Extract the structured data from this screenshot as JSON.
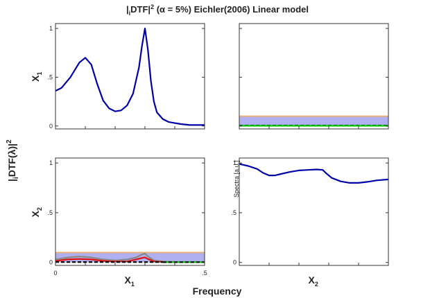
{
  "figure": {
    "title_main": "|",
    "title_sub": "i",
    "title_rest": "DTF|",
    "title_sup": "2",
    "title_tail": " (α = 5%) Eichler(2006) Linear model",
    "ylabel_main": "|",
    "ylabel_sub": "i",
    "ylabel_rest": "DTF(λ)|",
    "ylabel_sup": "2",
    "xlabel": "Frequency",
    "spectra_label": "Spectra [a.u.]"
  },
  "chart_data": [
    {
      "id": "p11",
      "type": "line",
      "row_label": "X",
      "row_sub": "1",
      "ylim": [
        0,
        1
      ],
      "xlim": [
        0,
        0.5
      ],
      "yticks": [
        "0",
        ".5",
        "1"
      ],
      "series": [
        {
          "color": "#0000a8",
          "x": [
            0,
            0.02,
            0.05,
            0.08,
            0.1,
            0.12,
            0.14,
            0.16,
            0.18,
            0.2,
            0.22,
            0.24,
            0.26,
            0.28,
            0.29,
            0.3,
            0.31,
            0.32,
            0.33,
            0.34,
            0.36,
            0.38,
            0.4,
            0.42,
            0.45,
            0.48,
            0.5
          ],
          "y": [
            0.36,
            0.39,
            0.5,
            0.65,
            0.7,
            0.63,
            0.43,
            0.26,
            0.18,
            0.15,
            0.16,
            0.21,
            0.33,
            0.6,
            0.82,
            1.0,
            0.78,
            0.46,
            0.25,
            0.14,
            0.07,
            0.04,
            0.03,
            0.02,
            0.01,
            0.01,
            0.01
          ]
        }
      ]
    },
    {
      "id": "p12",
      "type": "line",
      "ylim": [
        0,
        1
      ],
      "xlim": [
        0,
        0.5
      ],
      "band": {
        "upper": 0.1,
        "color": "#b0b0f0",
        "edge": "#e8b07a"
      },
      "series": [
        {
          "color": "#000000",
          "dashed": true,
          "x": [
            0,
            0.5
          ],
          "y": [
            0.005,
            0.005
          ]
        },
        {
          "color": "#00cc00",
          "dashed": false,
          "x": [
            0,
            0.5
          ],
          "y": [
            0.002,
            0.002
          ]
        }
      ]
    },
    {
      "id": "p21",
      "type": "line",
      "row_label": "X",
      "row_sub": "2",
      "col_label": "X",
      "col_sub": "1",
      "ylim": [
        0,
        1
      ],
      "xlim": [
        0,
        0.5
      ],
      "yticks": [
        "0",
        ".5",
        "1"
      ],
      "xticks": [
        "0",
        ".5"
      ],
      "band": {
        "upper": 0.1,
        "color": "#b0b0f0",
        "edge": "#e8b07a"
      },
      "series": [
        {
          "color": "#888888",
          "x": [
            0,
            0.04,
            0.08,
            0.12,
            0.16,
            0.2,
            0.24,
            0.27,
            0.29,
            0.3,
            0.31,
            0.33,
            0.36,
            0.4,
            0.45,
            0.5
          ],
          "y": [
            0.03,
            0.05,
            0.06,
            0.05,
            0.03,
            0.02,
            0.03,
            0.05,
            0.08,
            0.09,
            0.06,
            0.02,
            0.01,
            0.005,
            0.005,
            0.005
          ]
        },
        {
          "color": "#e01010",
          "x": [
            0,
            0.04,
            0.08,
            0.12,
            0.16,
            0.2,
            0.24,
            0.27,
            0.29,
            0.3,
            0.31,
            0.33,
            0.36
          ],
          "y": [
            0.015,
            0.03,
            0.035,
            0.03,
            0.015,
            0.01,
            0.01,
            0.03,
            0.045,
            0.05,
            0.035,
            0.01,
            0.005
          ]
        },
        {
          "color": "#000000",
          "dashed": true,
          "x": [
            0,
            0.36
          ],
          "y": [
            0.004,
            0.004
          ]
        },
        {
          "color": "#00cc00",
          "dashed": false,
          "x": [
            0.36,
            0.5
          ],
          "y": [
            0.003,
            0.003
          ]
        },
        {
          "color": "#000000",
          "dashed": true,
          "x": [
            0.36,
            0.5
          ],
          "y": [
            0.003,
            0.003
          ]
        }
      ]
    },
    {
      "id": "p22",
      "type": "line",
      "col_label": "X",
      "col_sub": "2",
      "ylim": [
        0,
        1
      ],
      "xlim": [
        0,
        0.5
      ],
      "yticks": [
        "0",
        ".5",
        "1"
      ],
      "series": [
        {
          "color": "#0000a8",
          "x": [
            0,
            0.03,
            0.06,
            0.08,
            0.1,
            0.12,
            0.14,
            0.17,
            0.2,
            0.23,
            0.26,
            0.28,
            0.29,
            0.31,
            0.34,
            0.37,
            0.4,
            0.43,
            0.46,
            0.5
          ],
          "y": [
            0.99,
            0.97,
            0.94,
            0.9,
            0.875,
            0.875,
            0.89,
            0.91,
            0.925,
            0.93,
            0.935,
            0.93,
            0.9,
            0.85,
            0.815,
            0.8,
            0.8,
            0.81,
            0.825,
            0.835
          ]
        }
      ]
    }
  ]
}
